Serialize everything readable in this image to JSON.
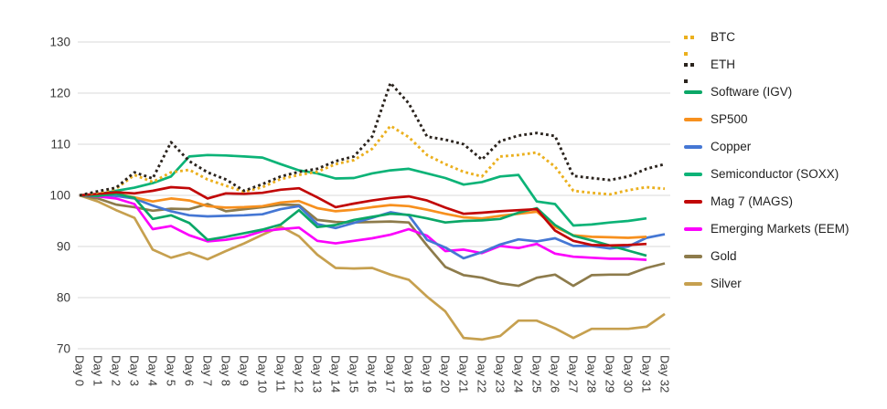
{
  "chart_data": {
    "type": "line",
    "title": "",
    "xlabel": "",
    "ylabel": "",
    "ylim": [
      70,
      130
    ],
    "yticks": [
      70,
      80,
      90,
      100,
      110,
      120,
      130
    ],
    "grid": "horizontal",
    "legend_position": "right",
    "categories": [
      "Day 0",
      "Day 1",
      "Day 2",
      "Day 3",
      "Day 4",
      "Day 5",
      "Day 6",
      "Day 7",
      "Day 8",
      "Day 9",
      "Day 10",
      "Day 11",
      "Day 12",
      "Day 13",
      "Day 14",
      "Day 15",
      "Day 16",
      "Day 17",
      "Day 18",
      "Day 19",
      "Day 20",
      "Day 21",
      "Day 22",
      "Day 23",
      "Day 24",
      "Day 25",
      "Day 26",
      "Day 27",
      "Day 28",
      "Day 29",
      "Day 30",
      "Day 31",
      "Day 32"
    ],
    "series": [
      {
        "name": "BTC",
        "color": "#EBB01E",
        "style": "dotted",
        "values": [
          100,
          100.6,
          101.3,
          104.0,
          102.6,
          104.5,
          105.0,
          103.1,
          101.9,
          100.7,
          101.6,
          103.2,
          104.0,
          104.6,
          106.1,
          106.9,
          109.1,
          113.6,
          111.4,
          107.9,
          106.1,
          104.6,
          103.7,
          107.6,
          107.9,
          108.4,
          105.6,
          100.9,
          100.5,
          100.2,
          101.0,
          101.6,
          101.3
        ]
      },
      {
        "name": "ETH",
        "color": "#2A231D",
        "style": "dotted",
        "values": [
          100,
          100.8,
          101.5,
          104.5,
          103.3,
          110.4,
          106.7,
          104.5,
          103.1,
          100.9,
          102.2,
          103.7,
          104.6,
          105.2,
          106.7,
          107.6,
          111.5,
          122.0,
          118.0,
          111.5,
          110.9,
          110.0,
          107.0,
          110.6,
          111.7,
          112.2,
          111.6,
          103.8,
          103.4,
          103.0,
          103.7,
          105.2,
          106.1
        ]
      },
      {
        "name": "Software (IGV)",
        "color": "#0BA767",
        "style": "solid",
        "values": [
          100,
          99.9,
          100.3,
          99.5,
          95.4,
          96.1,
          94.6,
          91.3,
          91.9,
          92.6,
          93.3,
          94.3,
          97.1,
          93.8,
          94.2,
          95.2,
          95.8,
          96.4,
          96.2,
          95.5,
          94.7,
          95.0,
          95.1,
          95.4,
          96.6,
          97.5,
          94.2,
          92.1,
          91.2,
          90.2,
          89.2,
          88.2,
          null
        ]
      },
      {
        "name": "SP500",
        "color": "#F7901E",
        "style": "solid",
        "values": [
          100,
          100.2,
          100.3,
          99.6,
          98.8,
          99.4,
          99.0,
          97.9,
          97.6,
          97.7,
          97.9,
          98.6,
          98.9,
          97.5,
          96.9,
          97.2,
          97.7,
          98.1,
          97.9,
          97.2,
          96.4,
          95.7,
          95.5,
          96.0,
          96.4,
          96.8,
          93.8,
          92.2,
          91.9,
          91.8,
          91.7,
          91.9,
          null
        ]
      },
      {
        "name": "Copper",
        "color": "#4577D4",
        "style": "solid",
        "values": [
          100,
          100.2,
          99.9,
          99.4,
          98.0,
          96.9,
          96.1,
          95.9,
          96.0,
          96.1,
          96.3,
          97.3,
          97.9,
          94.4,
          93.6,
          94.6,
          95.6,
          96.7,
          96.1,
          91.3,
          89.8,
          87.7,
          88.9,
          90.4,
          91.4,
          91.0,
          91.6,
          90.1,
          90.1,
          89.6,
          90.0,
          91.7,
          92.4
        ]
      },
      {
        "name": "Semiconductor (SOXX)",
        "color": "#0CB377",
        "style": "solid",
        "values": [
          100,
          100.2,
          100.9,
          101.5,
          102.4,
          103.7,
          107.6,
          107.9,
          107.8,
          107.6,
          107.4,
          106.1,
          104.9,
          104.3,
          103.3,
          103.4,
          104.3,
          104.9,
          105.2,
          104.3,
          103.4,
          102.1,
          102.6,
          103.7,
          104.0,
          98.8,
          98.3,
          94.1,
          94.3,
          94.7,
          95.0,
          95.5,
          null
        ]
      },
      {
        "name": "Mag 7 (MAGS)",
        "color": "#C10707",
        "style": "solid",
        "values": [
          100,
          100.3,
          100.6,
          100.4,
          100.9,
          101.6,
          101.4,
          99.4,
          100.4,
          100.3,
          100.5,
          101.1,
          101.4,
          99.6,
          97.7,
          98.4,
          99.0,
          99.5,
          99.8,
          99.0,
          97.6,
          96.4,
          96.6,
          96.9,
          97.1,
          97.3,
          93.1,
          91.1,
          90.3,
          90.2,
          90.3,
          90.5,
          null
        ]
      },
      {
        "name": "Emerging Markets (EEM)",
        "color": "#FB02FC",
        "style": "solid",
        "values": [
          100,
          99.8,
          99.4,
          98.3,
          93.4,
          94.0,
          92.2,
          91.0,
          91.3,
          91.9,
          93.0,
          93.4,
          93.7,
          91.1,
          90.6,
          91.1,
          91.6,
          92.3,
          93.4,
          92.1,
          89.1,
          89.4,
          88.7,
          90.1,
          89.7,
          90.5,
          88.6,
          88.0,
          87.8,
          87.6,
          87.6,
          87.4,
          null
        ]
      },
      {
        "name": "Gold",
        "color": "#8D7B4B",
        "style": "solid",
        "values": [
          100,
          99.4,
          98.2,
          97.7,
          97.0,
          97.4,
          97.3,
          98.3,
          96.9,
          97.3,
          97.7,
          98.2,
          98.1,
          95.2,
          94.8,
          94.7,
          94.8,
          94.9,
          94.7,
          90.2,
          86.0,
          84.4,
          83.9,
          82.8,
          82.3,
          83.9,
          84.5,
          82.3,
          84.4,
          84.5,
          84.5,
          85.8,
          86.7
        ]
      },
      {
        "name": "Silver",
        "color": "#C6A04F",
        "style": "solid",
        "values": [
          100,
          98.8,
          97.1,
          95.6,
          89.4,
          87.8,
          88.8,
          87.5,
          89.1,
          90.6,
          92.3,
          93.9,
          92.0,
          88.4,
          85.8,
          85.7,
          85.8,
          84.5,
          83.5,
          80.2,
          77.3,
          72.1,
          71.8,
          72.5,
          75.5,
          75.5,
          74.0,
          72.1,
          73.9,
          73.9,
          73.9,
          74.3,
          76.8
        ]
      }
    ],
    "colors": {
      "grid": "#DADADA",
      "axis_text": "#383838"
    }
  }
}
